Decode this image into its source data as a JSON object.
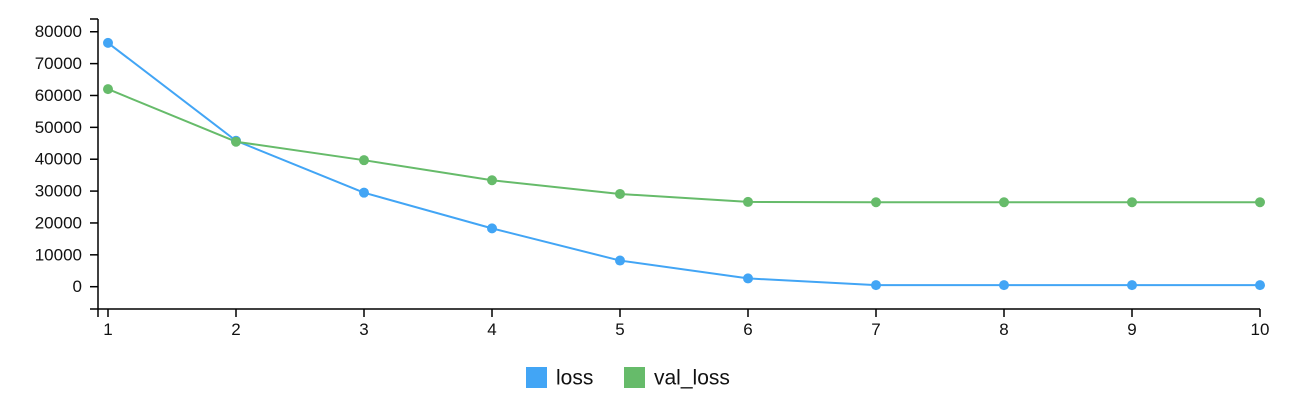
{
  "chart_data": {
    "type": "line",
    "title": "",
    "xlabel": "",
    "ylabel": "",
    "x": [
      1,
      2,
      3,
      4,
      5,
      6,
      7,
      8,
      9,
      10
    ],
    "xlim": [
      1,
      10
    ],
    "ylim": [
      -7000,
      84000
    ],
    "x_ticks": [
      "1",
      "2",
      "3",
      "4",
      "5",
      "6",
      "7",
      "8",
      "9",
      "10"
    ],
    "y_ticks": [
      0,
      10000,
      20000,
      30000,
      40000,
      50000,
      60000,
      70000,
      80000
    ],
    "grid": false,
    "legend_position": "bottom-center",
    "series": [
      {
        "name": "loss",
        "color": "#42a5f5",
        "values": [
          76500,
          45800,
          29500,
          18300,
          8200,
          2600,
          500,
          500,
          500,
          500
        ]
      },
      {
        "name": "val_loss",
        "color": "#66bb6a",
        "values": [
          62000,
          45500,
          39700,
          33400,
          29100,
          26600,
          26500,
          26500,
          26500,
          26500
        ]
      }
    ]
  }
}
